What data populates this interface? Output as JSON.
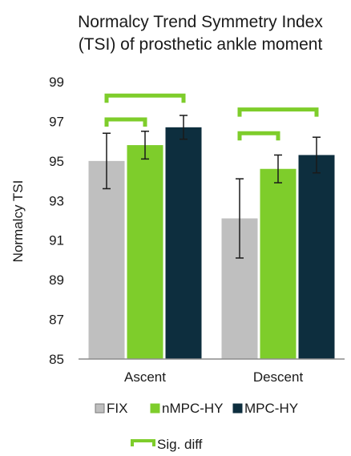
{
  "chart_data": {
    "type": "bar",
    "title": "Normalcy Trend Symmetry Index (TSI) of prosthetic ankle moment",
    "title_lines": [
      "Normalcy Trend Symmetry Index",
      "(TSI) of prosthetic ankle moment"
    ],
    "xlabel": "",
    "ylabel": "Normalcy TSI",
    "ylim": [
      85,
      99
    ],
    "yticks": [
      "85",
      "87",
      "89",
      "91",
      "93",
      "95",
      "97",
      "99"
    ],
    "yticks_values": [
      85,
      87,
      89,
      91,
      93,
      95,
      97,
      99
    ],
    "categories": [
      "Ascent",
      "Descent"
    ],
    "series": [
      {
        "name": "FIX",
        "values": [
          95.0,
          92.1
        ],
        "errors": [
          1.4,
          2.0
        ],
        "color": "#bfbfbf"
      },
      {
        "name": "nMPC-HY",
        "values": [
          95.8,
          94.6
        ],
        "errors": [
          0.7,
          0.7
        ],
        "color": "#7ecd2b"
      },
      {
        "name": "MPC-HY",
        "values": [
          96.7,
          95.3
        ],
        "errors": [
          0.6,
          0.9
        ],
        "color": "#0d2e3e"
      }
    ],
    "significance": [
      {
        "category": "Ascent",
        "from_series": "FIX",
        "to_series": "nMPC-HY",
        "level": 97.1
      },
      {
        "category": "Ascent",
        "from_series": "FIX",
        "to_series": "MPC-HY",
        "level": 98.3
      },
      {
        "category": "Descent",
        "from_series": "FIX",
        "to_series": "nMPC-HY",
        "level": 96.4
      },
      {
        "category": "Descent",
        "from_series": "FIX",
        "to_series": "MPC-HY",
        "level": 97.6
      }
    ],
    "significance_color": "#7ecd2b",
    "significance_legend": "Sig. diff",
    "grid": false,
    "legend_position": "bottom"
  }
}
